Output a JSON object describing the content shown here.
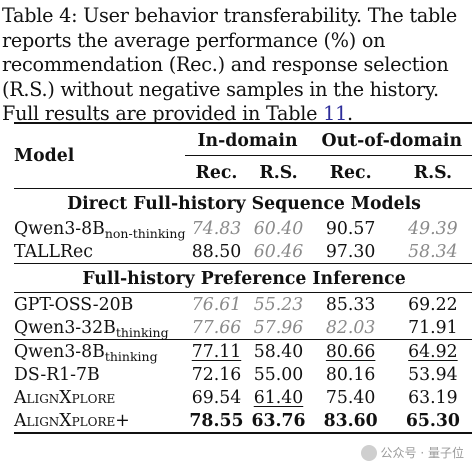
{
  "caption": {
    "text": "Table 4: User behavior transferability. The table reports the average performance (%) on recommendation (Rec.) and response selection (R.S.) without negative samples in the history. Full results are provided in Table ",
    "ref": "11",
    "end": "."
  },
  "table": {
    "header": {
      "model": "Model",
      "group_in": "In-domain",
      "group_out": "Out-of-domain",
      "rec": "Rec.",
      "rs": "R.S."
    },
    "sections": [
      {
        "title": "Direct Full-history Sequence Models",
        "rows": [
          {
            "model": "Qwen3-8B",
            "sub": "non-thinking",
            "values": [
              "74.83",
              "60.40",
              "90.57",
              "49.39"
            ]
          },
          {
            "model": "TALLRec",
            "sub": "",
            "values": [
              "88.50",
              "60.46",
              "97.30",
              "58.34"
            ]
          }
        ]
      },
      {
        "title": "Full-history Preference Inference",
        "rows": [
          {
            "model": "GPT-OSS-20B",
            "sub": "",
            "values": [
              "76.61",
              "55.23",
              "85.33",
              "69.22"
            ]
          },
          {
            "model": "Qwen3-32B",
            "sub": "thinking",
            "values": [
              "77.66",
              "57.96",
              "82.03",
              "71.91"
            ]
          },
          {
            "model": "Qwen3-8B",
            "sub": "thinking",
            "values": [
              "77.11",
              "58.40",
              "80.66",
              "64.92"
            ]
          },
          {
            "model": "DS-R1-7B",
            "sub": "",
            "values": [
              "72.16",
              "55.00",
              "80.16",
              "53.94"
            ]
          },
          {
            "model": "AlignXplore",
            "sub": "",
            "values": [
              "69.54",
              "61.40",
              "75.40",
              "63.19"
            ]
          },
          {
            "model": "AlignXplore+",
            "sub": "",
            "values": [
              "78.55",
              "63.76",
              "83.60",
              "65.30"
            ]
          }
        ]
      }
    ]
  },
  "watermark": {
    "text": "公众号 · 量子位"
  }
}
